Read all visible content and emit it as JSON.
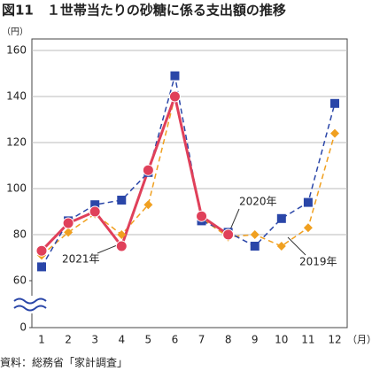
{
  "chart_data": {
    "type": "line",
    "title": "図11　１世帯当たりの砂糖に係る支出額の推移",
    "y_unit": "（円）",
    "x_unit": "（月）",
    "source": "資料：総務省「家計調査」",
    "categories": [
      "1",
      "2",
      "3",
      "4",
      "5",
      "6",
      "7",
      "8",
      "9",
      "10",
      "11",
      "12"
    ],
    "ylim": [
      0,
      160
    ],
    "ybreak": [
      0,
      60
    ],
    "yticks": [
      0,
      60,
      80,
      100,
      120,
      140,
      160
    ],
    "grid": true,
    "series": [
      {
        "name": "2019年",
        "color": "#f0a020",
        "dash": true,
        "marker": "diamond",
        "values": [
          71,
          81,
          89,
          80,
          93,
          140,
          87,
          79,
          80,
          75,
          83,
          124
        ]
      },
      {
        "name": "2020年",
        "color": "#2a46a8",
        "dash": true,
        "marker": "square",
        "values": [
          66,
          86,
          93,
          95,
          107,
          149,
          86,
          81,
          75,
          87,
          94,
          137
        ]
      },
      {
        "name": "2021年",
        "color": "#e0405a",
        "dash": false,
        "marker": "circle",
        "values": [
          73,
          85,
          90,
          75,
          108,
          140,
          88,
          80,
          null,
          null,
          null,
          null
        ]
      }
    ]
  }
}
